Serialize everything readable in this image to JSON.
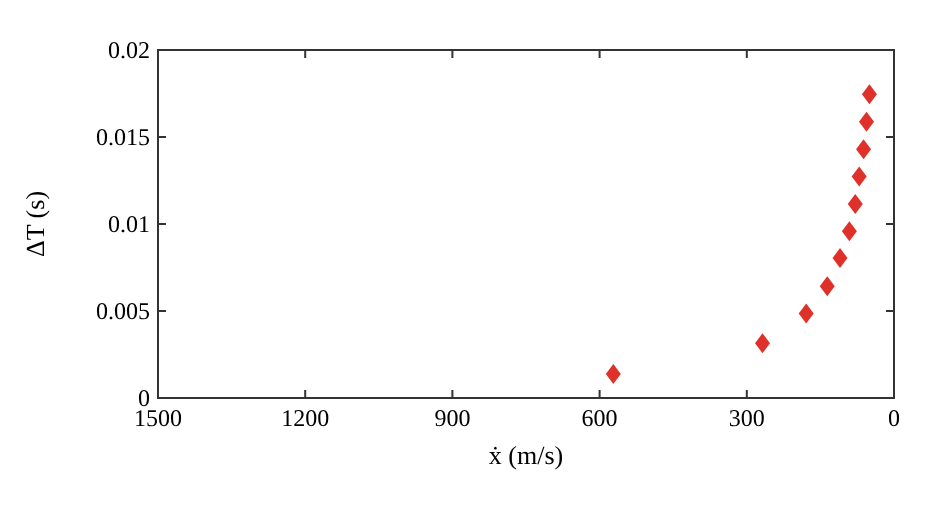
{
  "chart_data": {
    "type": "scatter",
    "xlabel": "ẋ (m/s)",
    "ylabel": "ΔT (s)",
    "marker": "diamond",
    "x": [
      572,
      268,
      179,
      136,
      110,
      91,
      79,
      71,
      62,
      56,
      50
    ],
    "series": [
      {
        "color": "#e0302a",
        "values": [
          0.00138,
          0.00315,
          0.00485,
          0.00642,
          0.00804,
          0.00958,
          0.01115,
          0.01273,
          0.0143,
          0.01588,
          0.01746
        ]
      }
    ],
    "xlim": [
      1500,
      0
    ],
    "xticks": [
      1500,
      1200,
      900,
      600,
      300,
      0
    ],
    "ylim": [
      0,
      0.02
    ],
    "yticks": [
      0,
      0.005,
      0.01,
      0.015,
      0.02
    ],
    "grid": false
  }
}
